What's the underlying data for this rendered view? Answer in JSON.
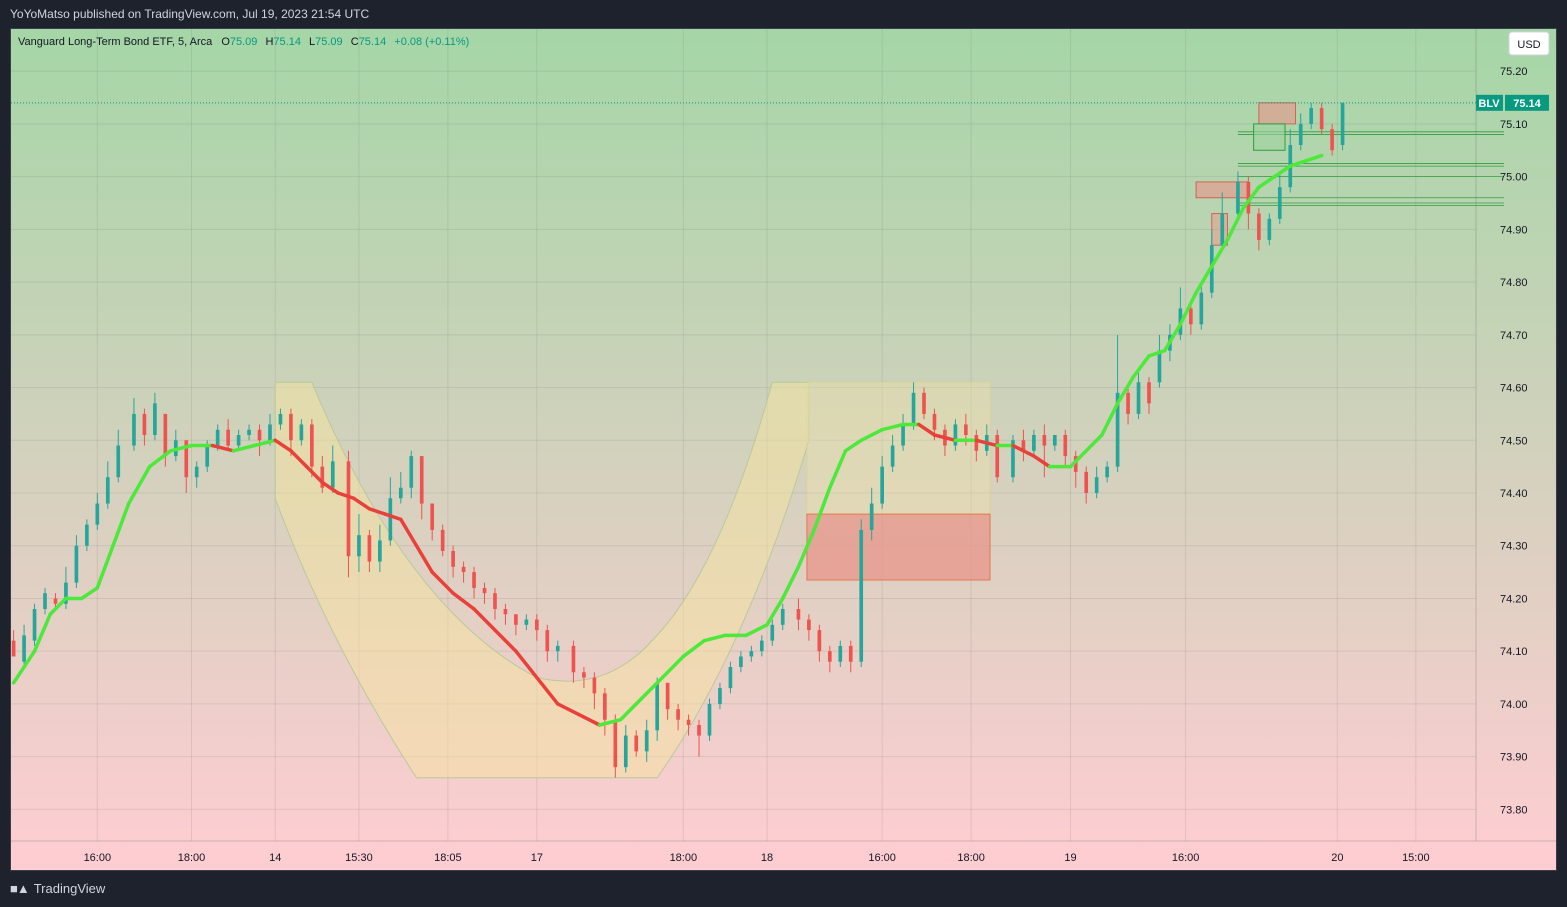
{
  "header": {
    "published": "YoYoMatso published on TradingView.com, Jul 19, 2023 21:54 UTC"
  },
  "legend": {
    "symbol": "Vanguard Long-Term Bond ETF, 5, Arca",
    "o_label": "O",
    "o": "75.09",
    "h_label": "H",
    "h": "75.14",
    "l_label": "L",
    "l": "75.09",
    "c_label": "C",
    "c": "75.14",
    "change": "+0.08 (+0.11%)"
  },
  "currency_button": "USD",
  "price_tag": {
    "ticker": "BLV",
    "price": "75.14"
  },
  "footer": {
    "brand": "TradingView"
  },
  "colors": {
    "up": "#26a69a",
    "down": "#ef5350",
    "ma_up": "#4ce83a",
    "ma_down": "#e8403a",
    "bg_top": "#a5d6a7",
    "bg_bottom": "#ffcdd2",
    "channel": "#f6e4a0",
    "zone": "#e8958a"
  },
  "chart_data": {
    "type": "candlestick",
    "title": "",
    "ylim": [
      73.74,
      75.28
    ],
    "y_ticks": [
      "75.20",
      "75.10",
      "75.00",
      "74.90",
      "74.80",
      "74.70",
      "74.60",
      "74.50",
      "74.40",
      "74.30",
      "74.20",
      "74.10",
      "74.00",
      "73.90",
      "73.80"
    ],
    "x_ticks": [
      {
        "label": "16:00",
        "i": 16
      },
      {
        "label": "18:00",
        "i": 34
      },
      {
        "label": "14",
        "i": 50
      },
      {
        "label": "15:30",
        "i": 66
      },
      {
        "label": "18:05",
        "i": 83
      },
      {
        "label": "17",
        "i": 100
      },
      {
        "label": "18:00",
        "i": 128
      },
      {
        "label": "18",
        "i": 144
      },
      {
        "label": "16:00",
        "i": 166
      },
      {
        "label": "18:00",
        "i": 183
      },
      {
        "label": "19",
        "i": 202
      },
      {
        "label": "16:00",
        "i": 224
      },
      {
        "label": "20",
        "i": 253
      },
      {
        "label": "15:00",
        "i": 268
      }
    ],
    "n_bars": 280,
    "last_price": 75.14,
    "moving_average": [
      {
        "i": 0,
        "v": 74.04
      },
      {
        "i": 4,
        "v": 74.1
      },
      {
        "i": 7,
        "v": 74.17
      },
      {
        "i": 10,
        "v": 74.2
      },
      {
        "i": 13,
        "v": 74.2
      },
      {
        "i": 16,
        "v": 74.22
      },
      {
        "i": 19,
        "v": 74.3
      },
      {
        "i": 22,
        "v": 74.38
      },
      {
        "i": 26,
        "v": 74.45
      },
      {
        "i": 30,
        "v": 74.48
      },
      {
        "i": 34,
        "v": 74.49
      },
      {
        "i": 38,
        "v": 74.49
      },
      {
        "i": 42,
        "v": 74.48
      },
      {
        "i": 46,
        "v": 74.49
      },
      {
        "i": 50,
        "v": 74.5
      },
      {
        "i": 53,
        "v": 74.48
      },
      {
        "i": 56,
        "v": 74.45
      },
      {
        "i": 59,
        "v": 74.42
      },
      {
        "i": 62,
        "v": 74.4
      },
      {
        "i": 65,
        "v": 74.39
      },
      {
        "i": 68,
        "v": 74.37
      },
      {
        "i": 71,
        "v": 74.36
      },
      {
        "i": 74,
        "v": 74.35
      },
      {
        "i": 77,
        "v": 74.3
      },
      {
        "i": 80,
        "v": 74.25
      },
      {
        "i": 84,
        "v": 74.21
      },
      {
        "i": 88,
        "v": 74.18
      },
      {
        "i": 92,
        "v": 74.14
      },
      {
        "i": 96,
        "v": 74.1
      },
      {
        "i": 100,
        "v": 74.05
      },
      {
        "i": 104,
        "v": 74.0
      },
      {
        "i": 108,
        "v": 73.98
      },
      {
        "i": 112,
        "v": 73.96
      },
      {
        "i": 116,
        "v": 73.97
      },
      {
        "i": 120,
        "v": 74.01
      },
      {
        "i": 124,
        "v": 74.05
      },
      {
        "i": 128,
        "v": 74.09
      },
      {
        "i": 132,
        "v": 74.12
      },
      {
        "i": 136,
        "v": 74.13
      },
      {
        "i": 140,
        "v": 74.13
      },
      {
        "i": 144,
        "v": 74.15
      },
      {
        "i": 147,
        "v": 74.2
      },
      {
        "i": 150,
        "v": 74.26
      },
      {
        "i": 153,
        "v": 74.33
      },
      {
        "i": 156,
        "v": 74.41
      },
      {
        "i": 159,
        "v": 74.48
      },
      {
        "i": 162,
        "v": 74.5
      },
      {
        "i": 166,
        "v": 74.52
      },
      {
        "i": 170,
        "v": 74.53
      },
      {
        "i": 173,
        "v": 74.53
      },
      {
        "i": 176,
        "v": 74.51
      },
      {
        "i": 180,
        "v": 74.5
      },
      {
        "i": 184,
        "v": 74.5
      },
      {
        "i": 188,
        "v": 74.49
      },
      {
        "i": 191,
        "v": 74.49
      },
      {
        "i": 195,
        "v": 74.47
      },
      {
        "i": 198,
        "v": 74.45
      },
      {
        "i": 202,
        "v": 74.45
      },
      {
        "i": 205,
        "v": 74.48
      },
      {
        "i": 208,
        "v": 74.51
      },
      {
        "i": 211,
        "v": 74.57
      },
      {
        "i": 214,
        "v": 74.62
      },
      {
        "i": 217,
        "v": 74.66
      },
      {
        "i": 220,
        "v": 74.67
      },
      {
        "i": 223,
        "v": 74.72
      },
      {
        "i": 226,
        "v": 74.78
      },
      {
        "i": 229,
        "v": 74.83
      },
      {
        "i": 232,
        "v": 74.88
      },
      {
        "i": 235,
        "v": 74.94
      },
      {
        "i": 238,
        "v": 74.98
      },
      {
        "i": 241,
        "v": 75.0
      },
      {
        "i": 244,
        "v": 75.02
      },
      {
        "i": 247,
        "v": 75.03
      },
      {
        "i": 250,
        "v": 75.04
      }
    ],
    "candles": [
      [
        74.12,
        74.09,
        74.14,
        74.09
      ],
      [
        74.08,
        74.13,
        74.15,
        74.07
      ],
      [
        74.12,
        74.18,
        74.19,
        74.11
      ],
      [
        74.18,
        74.21,
        74.22,
        74.17
      ],
      [
        74.2,
        74.19,
        74.21,
        74.18
      ],
      [
        74.19,
        74.23,
        74.26,
        74.18
      ],
      [
        74.23,
        74.3,
        74.32,
        74.22
      ],
      [
        74.3,
        74.34,
        74.35,
        74.29
      ],
      [
        74.34,
        74.38,
        74.4,
        74.33
      ],
      [
        74.38,
        74.43,
        74.46,
        74.37
      ],
      [
        74.43,
        74.49,
        74.52,
        74.42
      ],
      [
        74.49,
        74.55,
        74.58,
        74.48
      ],
      [
        74.55,
        74.51,
        74.56,
        74.49
      ],
      [
        74.51,
        74.57,
        74.59,
        74.5
      ],
      [
        74.55,
        74.47,
        74.55,
        74.45
      ],
      [
        74.47,
        74.5,
        74.52,
        74.46
      ],
      [
        74.5,
        74.43,
        74.5,
        74.4
      ],
      [
        74.43,
        74.45,
        74.46,
        74.41
      ],
      [
        74.45,
        74.49,
        74.5,
        74.44
      ],
      [
        74.49,
        74.52,
        74.53,
        74.48
      ],
      [
        74.52,
        74.49,
        74.54,
        74.48
      ],
      [
        74.49,
        74.51,
        74.52,
        74.48
      ],
      [
        74.51,
        74.52,
        74.53,
        74.5
      ],
      [
        74.52,
        74.5,
        74.53,
        74.47
      ],
      [
        74.5,
        74.53,
        74.55,
        74.49
      ],
      [
        74.53,
        74.55,
        74.56,
        74.52
      ],
      [
        74.55,
        74.5,
        74.56,
        74.47
      ],
      [
        74.5,
        74.53,
        74.54,
        74.49
      ],
      [
        74.53,
        74.45,
        74.54,
        74.43
      ],
      [
        74.45,
        74.41,
        74.47,
        74.4
      ],
      [
        74.41,
        74.46,
        74.49,
        74.4
      ],
      [
        74.46,
        74.28,
        74.48,
        74.24
      ],
      [
        74.28,
        74.32,
        74.36,
        74.25
      ],
      [
        74.32,
        74.27,
        74.33,
        74.25
      ],
      [
        74.27,
        74.31,
        74.34,
        74.25
      ],
      [
        74.31,
        74.39,
        74.43,
        74.3
      ],
      [
        74.39,
        74.41,
        74.44,
        74.38
      ],
      [
        74.41,
        74.47,
        74.48,
        74.39
      ],
      [
        74.47,
        74.38,
        74.47,
        74.35
      ],
      [
        74.38,
        74.33,
        74.38,
        74.31
      ],
      [
        74.33,
        74.29,
        74.34,
        74.28
      ],
      [
        74.29,
        74.26,
        74.3,
        74.24
      ],
      [
        74.26,
        74.25,
        74.27,
        74.23
      ],
      [
        74.25,
        74.22,
        74.26,
        74.2
      ],
      [
        74.22,
        74.21,
        74.23,
        74.19
      ],
      [
        74.21,
        74.18,
        74.22,
        74.16
      ],
      [
        74.18,
        74.17,
        74.19,
        74.15
      ],
      [
        74.17,
        74.15,
        74.17,
        74.13
      ],
      [
        74.15,
        74.16,
        74.17,
        74.14
      ],
      [
        74.16,
        74.14,
        74.17,
        74.12
      ],
      [
        74.14,
        74.1,
        74.15,
        74.08
      ],
      [
        74.1,
        74.11,
        74.12,
        74.08
      ],
      [
        74.11,
        74.06,
        74.12,
        74.04
      ],
      [
        74.06,
        74.05,
        74.07,
        74.03
      ],
      [
        74.05,
        74.02,
        74.06,
        73.99
      ],
      [
        74.02,
        73.97,
        74.03,
        73.94
      ],
      [
        73.97,
        73.88,
        73.98,
        73.86
      ],
      [
        73.88,
        73.94,
        73.96,
        73.87
      ],
      [
        73.94,
        73.91,
        73.95,
        73.9
      ],
      [
        73.91,
        73.95,
        73.97,
        73.89
      ],
      [
        73.95,
        74.04,
        74.05,
        73.93
      ],
      [
        74.04,
        73.99,
        74.04,
        73.97
      ],
      [
        73.99,
        73.97,
        74.0,
        73.95
      ],
      [
        73.97,
        73.96,
        73.98,
        73.94
      ],
      [
        73.96,
        73.94,
        73.97,
        73.9
      ],
      [
        73.94,
        74.0,
        74.01,
        73.93
      ],
      [
        74.0,
        74.03,
        74.04,
        73.99
      ],
      [
        74.03,
        74.07,
        74.08,
        74.02
      ],
      [
        74.07,
        74.09,
        74.1,
        74.06
      ],
      [
        74.09,
        74.1,
        74.11,
        74.08
      ],
      [
        74.1,
        74.12,
        74.13,
        74.09
      ],
      [
        74.12,
        74.15,
        74.16,
        74.11
      ],
      [
        74.15,
        74.18,
        74.19,
        74.14
      ],
      [
        74.18,
        74.16,
        74.2,
        74.14
      ],
      [
        74.16,
        74.14,
        74.17,
        74.12
      ],
      [
        74.14,
        74.1,
        74.15,
        74.08
      ],
      [
        74.1,
        74.08,
        74.11,
        74.06
      ],
      [
        74.08,
        74.11,
        74.12,
        74.07
      ],
      [
        74.11,
        74.08,
        74.12,
        74.06
      ],
      [
        74.08,
        74.33,
        74.35,
        74.07
      ],
      [
        74.33,
        74.38,
        74.41,
        74.31
      ],
      [
        74.38,
        74.45,
        74.47,
        74.37
      ],
      [
        74.45,
        74.49,
        74.51,
        74.44
      ],
      [
        74.49,
        74.53,
        74.55,
        74.48
      ],
      [
        74.53,
        74.59,
        74.61,
        74.52
      ],
      [
        74.59,
        74.55,
        74.6,
        74.54
      ],
      [
        74.55,
        74.52,
        74.56,
        74.5
      ],
      [
        74.52,
        74.49,
        74.53,
        74.47
      ],
      [
        74.49,
        74.53,
        74.54,
        74.48
      ],
      [
        74.53,
        74.51,
        74.55,
        74.49
      ],
      [
        74.51,
        74.48,
        74.52,
        74.46
      ],
      [
        74.48,
        74.51,
        74.53,
        74.47
      ],
      [
        74.51,
        74.43,
        74.52,
        74.42
      ],
      [
        74.43,
        74.5,
        74.51,
        74.42
      ],
      [
        74.5,
        74.48,
        74.52,
        74.46
      ],
      [
        74.48,
        74.51,
        74.52,
        74.47
      ],
      [
        74.51,
        74.49,
        74.53,
        74.43
      ],
      [
        74.49,
        74.51,
        74.51,
        74.48
      ],
      [
        74.51,
        74.47,
        74.52,
        74.45
      ],
      [
        74.47,
        74.44,
        74.48,
        74.41
      ],
      [
        74.44,
        74.4,
        74.45,
        74.38
      ],
      [
        74.4,
        74.43,
        74.45,
        74.39
      ],
      [
        74.43,
        74.45,
        74.46,
        74.42
      ],
      [
        74.45,
        74.59,
        74.7,
        74.44
      ],
      [
        74.59,
        74.55,
        74.6,
        74.53
      ],
      [
        74.55,
        74.61,
        74.63,
        74.54
      ],
      [
        74.61,
        74.57,
        74.62,
        74.55
      ],
      [
        74.61,
        74.67,
        74.7,
        74.6
      ],
      [
        74.67,
        74.7,
        74.72,
        74.65
      ],
      [
        74.7,
        74.75,
        74.79,
        74.69
      ],
      [
        74.75,
        74.72,
        74.76,
        74.7
      ],
      [
        74.72,
        74.78,
        74.8,
        74.71
      ],
      [
        74.78,
        74.87,
        74.9,
        74.77
      ],
      [
        74.87,
        74.93,
        74.97,
        74.86
      ],
      [
        74.93,
        74.99,
        75.01,
        74.92
      ],
      [
        74.99,
        74.93,
        75.0,
        74.9
      ],
      [
        74.93,
        74.88,
        74.94,
        74.86
      ],
      [
        74.88,
        74.92,
        74.93,
        74.87
      ],
      [
        74.92,
        74.98,
        75.01,
        74.91
      ],
      [
        74.98,
        75.06,
        75.09,
        74.97
      ],
      [
        75.06,
        75.1,
        75.12,
        75.05
      ],
      [
        75.1,
        75.13,
        75.14,
        75.09
      ],
      [
        75.13,
        75.09,
        75.14,
        75.08
      ],
      [
        75.09,
        75.05,
        75.1,
        75.04
      ],
      [
        75.06,
        75.14,
        75.14,
        75.05
      ]
    ]
  }
}
